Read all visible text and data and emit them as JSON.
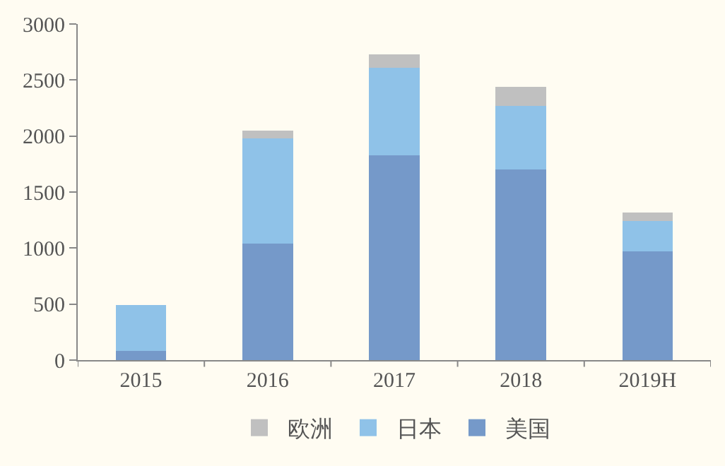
{
  "chart_data": {
    "type": "bar",
    "stacked": true,
    "categories": [
      "2015",
      "2016",
      "2017",
      "2018",
      "2019H"
    ],
    "series": [
      {
        "name": "美国",
        "color": "#7599c9",
        "values": [
          80,
          1040,
          1830,
          1700,
          970
        ]
      },
      {
        "name": "日本",
        "color": "#8fc2e8",
        "values": [
          410,
          940,
          780,
          570,
          270
        ]
      },
      {
        "name": "欧洲",
        "color": "#c0c0c0",
        "values": [
          0,
          70,
          120,
          170,
          80
        ]
      }
    ],
    "ylim": [
      0,
      3000
    ],
    "yticks": [
      0,
      500,
      1000,
      1500,
      2000,
      2500,
      3000
    ],
    "grid": false,
    "legend": "bottom"
  }
}
